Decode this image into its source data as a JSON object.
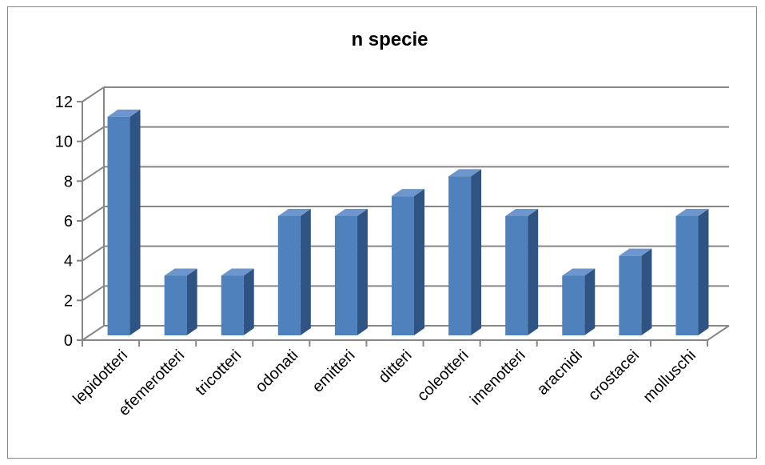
{
  "chart_data": {
    "type": "bar",
    "title": "n specie",
    "categories": [
      "lepidotteri",
      "efemerotteri",
      "tricotteri",
      "odonati",
      "emitteri",
      "ditteri",
      "coleotteri",
      "imenotteri",
      "aracnidi",
      "crostacei",
      "molluschi"
    ],
    "values": [
      11,
      3,
      3,
      6,
      6,
      7,
      8,
      6,
      3,
      4,
      6
    ],
    "ylim": [
      0,
      12
    ],
    "yticks": [
      "0",
      "2",
      "4",
      "6",
      "8",
      "10",
      "12"
    ],
    "xlabel": "",
    "ylabel": "",
    "grid": true,
    "legend": "none",
    "style": "3d-column",
    "colors": {
      "bar_front": "#4f81bd",
      "bar_side": "#2f5382",
      "bar_top": "#6d97cc",
      "grid": "#868686"
    }
  }
}
